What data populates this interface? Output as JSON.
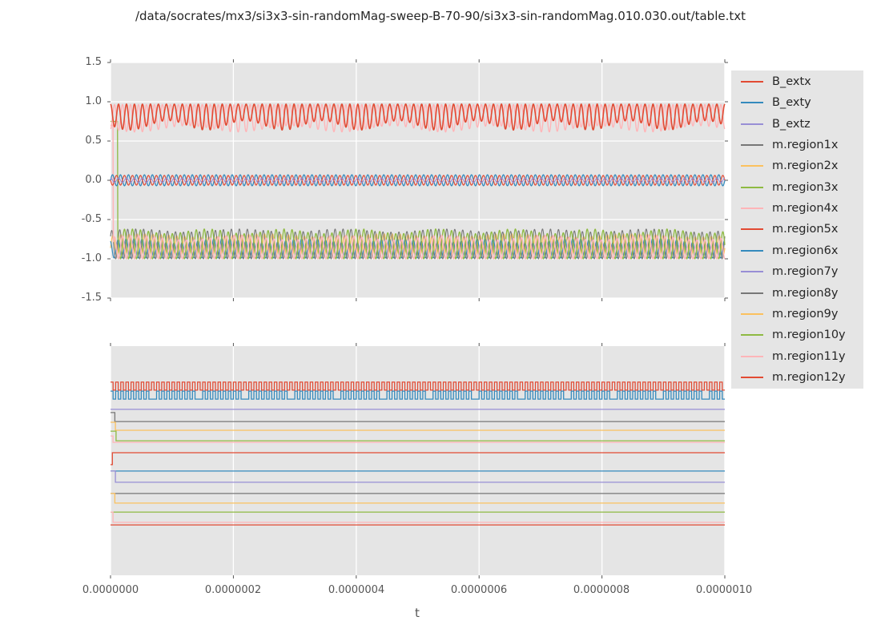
{
  "figure": {
    "title": "/data/socrates/mx3/si3x3-sin-randomMag-sweep-B-70-90/si3x3-sin-randomMag.010.030.out/table.txt"
  },
  "style": {
    "figure_background": "#ffffff",
    "axes_background": "#e5e5e5",
    "grid_color": "#ffffff",
    "tick_color": "#555555",
    "tick_label_color": "#555555",
    "text_color": "#262626"
  },
  "top_plot": {
    "y_tick_labels": [
      "1.5",
      "1.0",
      "0.5",
      "0.0",
      "-0.5",
      "-1.0",
      "-1.5"
    ]
  },
  "bottom_plot": {
    "x_tick_labels": [
      "0.0000000",
      "0.0000002",
      "0.0000004",
      "0.0000006",
      "0.0000008",
      "0.0000010"
    ],
    "x_axis_label": "t"
  },
  "legend": {
    "items": [
      {
        "label": "B_extx",
        "color": "#E24A33"
      },
      {
        "label": "B_exty",
        "color": "#348ABD"
      },
      {
        "label": "B_extz",
        "color": "#988ED5"
      },
      {
        "label": "m.region1x",
        "color": "#777777"
      },
      {
        "label": "m.region2x",
        "color": "#FBC15E"
      },
      {
        "label": "m.region3x",
        "color": "#8EBA42"
      },
      {
        "label": "m.region4x",
        "color": "#FFB5B8"
      },
      {
        "label": "m.region5x",
        "color": "#E24A33"
      },
      {
        "label": "m.region6x",
        "color": "#348ABD"
      },
      {
        "label": "m.region7y",
        "color": "#988ED5"
      },
      {
        "label": "m.region8y",
        "color": "#777777"
      },
      {
        "label": "m.region9y",
        "color": "#FBC15E"
      },
      {
        "label": "m.region10y",
        "color": "#8EBA42"
      },
      {
        "label": "m.region11y",
        "color": "#FFB5B8"
      },
      {
        "label": "m.region12y",
        "color": "#E24A33"
      }
    ]
  },
  "chart_data": [
    {
      "id": "top-subplot",
      "type": "line",
      "xlabel": "t",
      "x_range": [
        0,
        1e-06
      ],
      "x_tick_values": [
        0,
        2e-07,
        4e-07,
        6e-07,
        8e-07,
        1e-06
      ],
      "ylim": [
        -1.5,
        1.5
      ],
      "y_tick_values": [
        1.5,
        1.0,
        0.5,
        0.0,
        -0.5,
        -1.0,
        -1.5
      ],
      "grid": "both",
      "legend_position": "outside-right",
      "description": "Dense oscillations: red/pink band between ~0.65 and ~0.97, small-amplitude blue/red/purple sines about 0, multicolor band between ~-1.0 and ~-0.64; pink and green transients drop from ~+0.7 to ~-1.0 near t=0",
      "series": [
        {
          "id": "lower-band-orange",
          "color": "#FBC15E",
          "kind": "band",
          "dir": "up",
          "edge": -0.95,
          "depth": 0.25,
          "depthMod": 0.02,
          "cycles": 77,
          "env": 5,
          "phase": 0.2,
          "lw": 1.2
        },
        {
          "id": "lower-band-blue",
          "color": "#348ABD",
          "kind": "band",
          "dir": "up",
          "edge": -0.99,
          "depth": 0.22,
          "depthMod": 0.03,
          "cycles": 77,
          "env": 7,
          "phase": 0.55,
          "lw": 1.2
        },
        {
          "id": "lower-band-gray",
          "color": "#777777",
          "kind": "band",
          "dir": "up",
          "edge": -1.0,
          "depth": 0.36,
          "depthMod": 0.02,
          "cycles": 77,
          "env": 6,
          "phase": 0.35,
          "lw": 1.1
        },
        {
          "id": "lower-band-green",
          "color": "#8EBA42",
          "kind": "band",
          "dir": "up",
          "edge": -1.0,
          "depth": 0.35,
          "depthMod": 0.03,
          "cycles": 77,
          "env": 8,
          "phase": 0.75,
          "lw": 1.3,
          "drop": {
            "x": 0.0115,
            "from": 0.75
          }
        },
        {
          "id": "lower-band-pink",
          "color": "#FFB5B8",
          "kind": "band",
          "dir": "up",
          "edge": -1.0,
          "depth": 0.27,
          "depthMod": 0.03,
          "cycles": 77,
          "env": 6,
          "phase": 0.0,
          "lw": 1.5,
          "drop": {
            "x": 0.0045,
            "from": 0.7
          }
        },
        {
          "id": "upper-band-pink",
          "color": "#FFB5B8",
          "kind": "band",
          "dir": "down",
          "edge": 0.965,
          "depth": 0.31,
          "depthMod": 0.04,
          "cycles": 77,
          "env": 6,
          "phase": 0.5,
          "lw": 1.4
        },
        {
          "id": "upper-band-red",
          "color": "#E24A33",
          "kind": "band",
          "dir": "down",
          "edge": 0.97,
          "depth": 0.27,
          "depthMod": 0.06,
          "cycles": 77,
          "env": 8,
          "phase": 0.0,
          "lw": 1.6
        },
        {
          "id": "zero-sine-blue",
          "color": "#348ABD",
          "kind": "sine",
          "mean": 0.0,
          "amp": 0.07,
          "cycles": 77,
          "phase": 0.0,
          "lw": 1.3
        },
        {
          "id": "zero-sine-red",
          "color": "#E24A33",
          "kind": "sine",
          "mean": 0.0,
          "amp": 0.062,
          "cycles": 77,
          "phase": 0.5,
          "lw": 1.2
        },
        {
          "id": "zero-sine-purple",
          "color": "#988ED5",
          "kind": "sine",
          "mean": 0.0,
          "amp": 0.028,
          "cycles": 77,
          "phase": 0.25,
          "lw": 1.2
        }
      ]
    },
    {
      "id": "bottom-subplot",
      "type": "line",
      "xlabel": "t",
      "x_range": [
        0,
        1e-06
      ],
      "x_tick_values": [
        0,
        2e-07,
        4e-07,
        6e-07,
        8e-07,
        1e-06
      ],
      "y_axis": "unlabeled (no y ticks); series levels given as fraction of axis height from top",
      "grid": "x-only",
      "description": "Two fast square waves (red, blue) at top; thirteen nearly-flat lines below, several with a single small downward (or upward) step near t=0",
      "series": [
        {
          "id": "square-red",
          "color": "#E24A33",
          "kind": "square",
          "high": 0.157,
          "low": 0.192,
          "cycles": 120,
          "duty": 0.5,
          "lw": 1.3
        },
        {
          "id": "square-blue",
          "color": "#348ABD",
          "kind": "square",
          "high": 0.196,
          "low": 0.231,
          "cycles": 120,
          "duty": 0.5,
          "longLowEvery": 9,
          "lw": 1.3
        },
        {
          "id": "flat-purple",
          "color": "#988ED5",
          "kind": "flat",
          "level": 0.276,
          "lw": 1.3
        },
        {
          "id": "step-gray-1",
          "color": "#777777",
          "kind": "step",
          "from": 0.29,
          "to": 0.329,
          "at": 0.007,
          "lw": 1.3
        },
        {
          "id": "step-orange-1",
          "color": "#FBC15E",
          "kind": "step",
          "from": 0.332,
          "to": 0.367,
          "at": 0.008,
          "lw": 1.3
        },
        {
          "id": "step-green-1",
          "color": "#8EBA42",
          "kind": "step",
          "from": 0.371,
          "to": 0.413,
          "at": 0.009,
          "lw": 1.3
        },
        {
          "id": "step-pink-1",
          "color": "#FFB5B8",
          "kind": "step",
          "from": 0.392,
          "to": 0.42,
          "at": 0.004,
          "lw": 1.3
        },
        {
          "id": "step-red-1",
          "color": "#E24A33",
          "kind": "step",
          "from": 0.517,
          "to": 0.465,
          "at": 0.003,
          "lw": 1.3
        },
        {
          "id": "flat-blue",
          "color": "#348ABD",
          "kind": "flat",
          "level": 0.545,
          "lw": 1.3
        },
        {
          "id": "step-purple",
          "color": "#988ED5",
          "kind": "step",
          "from": 0.545,
          "to": 0.594,
          "at": 0.008,
          "lw": 1.3
        },
        {
          "id": "flat-gray",
          "color": "#777777",
          "kind": "flat",
          "level": 0.643,
          "lw": 1.3
        },
        {
          "id": "step-orange-2",
          "color": "#FBC15E",
          "kind": "step",
          "from": 0.643,
          "to": 0.685,
          "at": 0.007,
          "lw": 1.3
        },
        {
          "id": "flat-green",
          "color": "#8EBA42",
          "kind": "flat",
          "level": 0.724,
          "lw": 1.3
        },
        {
          "id": "step-pink-2",
          "color": "#FFB5B8",
          "kind": "step",
          "from": 0.724,
          "to": 0.769,
          "at": 0.004,
          "lw": 1.3
        },
        {
          "id": "flat-red",
          "color": "#E24A33",
          "kind": "flat",
          "level": 0.78,
          "lw": 1.3
        }
      ]
    }
  ]
}
